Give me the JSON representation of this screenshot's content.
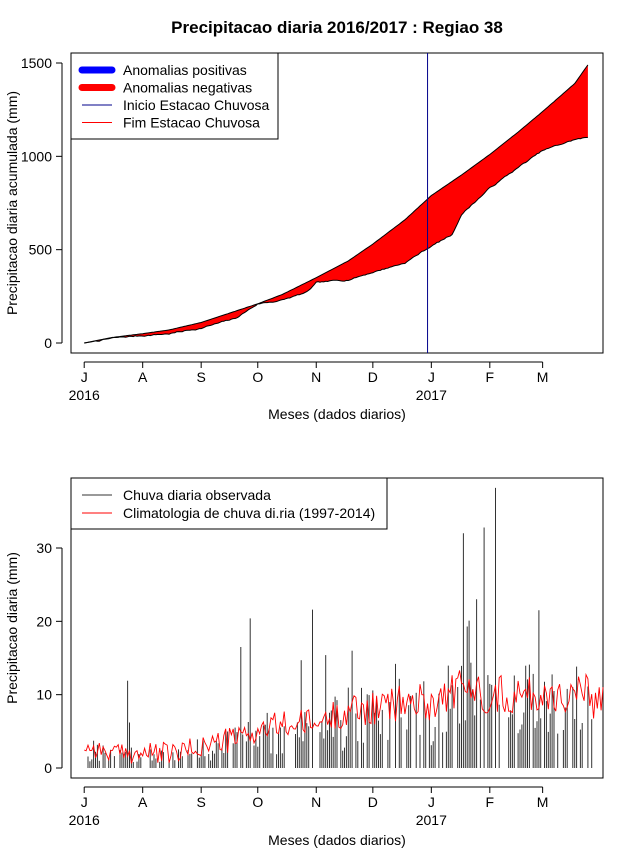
{
  "title": "Precipitacao diaria 2016/2017 : Regiao 38",
  "chart_data": [
    {
      "type": "area",
      "name": "accumulated",
      "ylabel": "Precipitacao diaria acumulada (mm)",
      "xlabel": "Meses (dados diarios)",
      "ylim": [
        0,
        1500
      ],
      "yticks": [
        0,
        500,
        1000,
        1500
      ],
      "x_domain_days": [
        -7,
        275
      ],
      "months": [
        {
          "label": "J",
          "day": 0
        },
        {
          "label": "A",
          "day": 31
        },
        {
          "label": "S",
          "day": 62
        },
        {
          "label": "O",
          "day": 92
        },
        {
          "label": "N",
          "day": 123
        },
        {
          "label": "D",
          "day": 153
        },
        {
          "label": "J",
          "day": 184
        },
        {
          "label": "F",
          "day": 215
        },
        {
          "label": "M",
          "day": 243
        }
      ],
      "year_labels": [
        {
          "label": "2016",
          "day": 0
        },
        {
          "label": "2017",
          "day": 184
        }
      ],
      "rainy_season_start_day": 182,
      "legend": {
        "position": "top-left",
        "entries": [
          {
            "label": "Anomalias positivas",
            "color": "#0000ff",
            "style": "thick"
          },
          {
            "label": "Anomalias negativas",
            "color": "#ff0000",
            "style": "thick"
          },
          {
            "label": "Inicio Estacao Chuvosa",
            "color": "#00008b",
            "style": "thin"
          },
          {
            "label": "Fim Estacao Chuvosa",
            "color": "#ff0000",
            "style": "thin"
          }
        ]
      },
      "climatology_knots": [
        [
          0,
          0
        ],
        [
          15,
          30
        ],
        [
          31,
          50
        ],
        [
          45,
          70
        ],
        [
          62,
          110
        ],
        [
          80,
          170
        ],
        [
          92,
          210
        ],
        [
          105,
          260
        ],
        [
          123,
          350
        ],
        [
          140,
          440
        ],
        [
          153,
          530
        ],
        [
          170,
          660
        ],
        [
          184,
          790
        ],
        [
          200,
          900
        ],
        [
          215,
          1010
        ],
        [
          230,
          1130
        ],
        [
          243,
          1240
        ],
        [
          260,
          1390
        ],
        [
          267,
          1490
        ]
      ],
      "observed_knots": [
        [
          0,
          0
        ],
        [
          15,
          25
        ],
        [
          31,
          40
        ],
        [
          45,
          50
        ],
        [
          62,
          80
        ],
        [
          80,
          130
        ],
        [
          92,
          210
        ],
        [
          105,
          230
        ],
        [
          118,
          270
        ],
        [
          123,
          320
        ],
        [
          140,
          340
        ],
        [
          153,
          380
        ],
        [
          170,
          430
        ],
        [
          184,
          520
        ],
        [
          195,
          580
        ],
        [
          200,
          690
        ],
        [
          215,
          830
        ],
        [
          230,
          940
        ],
        [
          243,
          1030
        ],
        [
          260,
          1090
        ],
        [
          267,
          1100
        ]
      ]
    },
    {
      "type": "bar",
      "name": "daily",
      "ylabel": "Precipitacao diaria (mm)",
      "xlabel": "Meses (dados diarios)",
      "ylim": [
        0,
        40
      ],
      "yticks": [
        0,
        10,
        20,
        30
      ],
      "x_domain_days": [
        -7,
        275
      ],
      "legend": {
        "position": "top-left",
        "entries": [
          {
            "label": "Chuva diaria observada",
            "color": "#333333"
          },
          {
            "label": "Climatologia de chuva di.ria (1997-2014)",
            "color": "#ff0000"
          }
        ]
      },
      "notable_peaks": [
        {
          "day": 23,
          "value": 11.9
        },
        {
          "day": 24,
          "value": 6.2
        },
        {
          "day": 83,
          "value": 16.5
        },
        {
          "day": 88,
          "value": 20.4
        },
        {
          "day": 115,
          "value": 14.7
        },
        {
          "day": 121,
          "value": 21.6
        },
        {
          "day": 128,
          "value": 15.4
        },
        {
          "day": 142,
          "value": 16.0
        },
        {
          "day": 165,
          "value": 14.2
        },
        {
          "day": 201,
          "value": 32.0
        },
        {
          "day": 203,
          "value": 19.3
        },
        {
          "day": 204,
          "value": 20.1
        },
        {
          "day": 208,
          "value": 23.0
        },
        {
          "day": 212,
          "value": 32.8
        },
        {
          "day": 218,
          "value": 38.2
        },
        {
          "day": 236,
          "value": 14.1
        },
        {
          "day": 241,
          "value": 21.5
        }
      ],
      "climatology_knots": [
        [
          0,
          3
        ],
        [
          15,
          2
        ],
        [
          31,
          2
        ],
        [
          50,
          2
        ],
        [
          62,
          3
        ],
        [
          80,
          4
        ],
        [
          92,
          5
        ],
        [
          105,
          6
        ],
        [
          123,
          6
        ],
        [
          140,
          8
        ],
        [
          153,
          8
        ],
        [
          170,
          9
        ],
        [
          184,
          9
        ],
        [
          200,
          11
        ],
        [
          215,
          10
        ],
        [
          230,
          10
        ],
        [
          243,
          10
        ],
        [
          260,
          10
        ],
        [
          275,
          9
        ]
      ]
    }
  ]
}
